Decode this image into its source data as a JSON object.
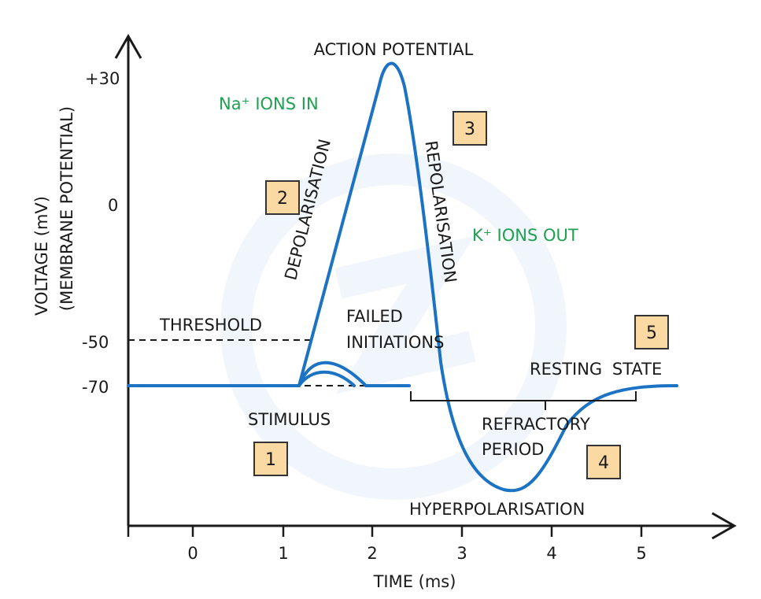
{
  "title": "ACTION POTENTIAL",
  "axes": {
    "y_label_line1": "VOLTAGE (mV)",
    "y_label_line2": "(MEMBRANE POTENTIAL)",
    "x_label": "TIME (ms)",
    "y_ticks": [
      "+30",
      "0",
      "-50",
      "-70"
    ],
    "x_ticks": [
      "0",
      "1",
      "2",
      "3",
      "4",
      "5"
    ]
  },
  "labels": {
    "threshold": "THRESHOLD",
    "failed_1": "FAILED",
    "failed_2": "INITIATIONS",
    "stimulus": "STIMULUS",
    "depolarisation": "DEPOLARISATION",
    "repolarisation": "REPOLARISATION",
    "resting_state": "RESTING STATE",
    "refractory_1": "REFRACTORY",
    "refractory_2": "PERIOD",
    "hyperpolarisation": "HYPERPOLARISATION",
    "na_ions": "Na⁺ IONS IN",
    "k_ions": "K⁺ IONS OUT"
  },
  "badges": [
    "1",
    "2",
    "3",
    "4",
    "5"
  ],
  "colors": {
    "curve": "#1c73c4",
    "ions_text": "#20a050",
    "badge_fill": "#fbd9a3",
    "badge_stroke": "#333333"
  }
}
